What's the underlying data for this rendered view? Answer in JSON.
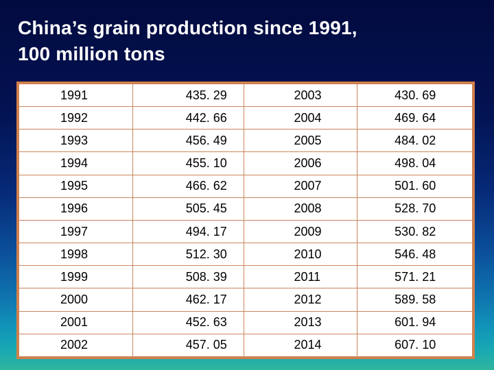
{
  "title": {
    "line1": "China’s grain production since 1991,",
    "line2": "100 million tons"
  },
  "table": {
    "rows": [
      {
        "year_a": "1991",
        "value_a": "435. 29",
        "year_b": "2003",
        "value_b": "430. 69"
      },
      {
        "year_a": "1992",
        "value_a": "442. 66",
        "year_b": "2004",
        "value_b": "469. 64"
      },
      {
        "year_a": "1993",
        "value_a": "456. 49",
        "year_b": "2005",
        "value_b": "484. 02"
      },
      {
        "year_a": "1994",
        "value_a": "455. 10",
        "year_b": "2006",
        "value_b": "498. 04"
      },
      {
        "year_a": "1995",
        "value_a": "466. 62",
        "year_b": "2007",
        "value_b": "501. 60"
      },
      {
        "year_a": "1996",
        "value_a": "505. 45",
        "year_b": "2008",
        "value_b": "528. 70"
      },
      {
        "year_a": "1997",
        "value_a": "494. 17",
        "year_b": "2009",
        "value_b": "530. 82"
      },
      {
        "year_a": "1998",
        "value_a": "512. 30",
        "year_b": "2010",
        "value_b": "546. 48"
      },
      {
        "year_a": "1999",
        "value_a": "508. 39",
        "year_b": "2011",
        "value_b": "571. 21"
      },
      {
        "year_a": "2000",
        "value_a": "462. 17",
        "year_b": "2012",
        "value_b": "589. 58"
      },
      {
        "year_a": "2001",
        "value_a": "452. 63",
        "year_b": "2013",
        "value_b": "601. 94"
      },
      {
        "year_a": "2002",
        "value_a": "457. 05",
        "year_b": "2014",
        "value_b": "607. 10"
      }
    ]
  },
  "colors": {
    "background_top": "#020b3f",
    "background_bottom": "#2fb49e",
    "table_border": "#d3804a",
    "title_text": "#ffffff"
  }
}
